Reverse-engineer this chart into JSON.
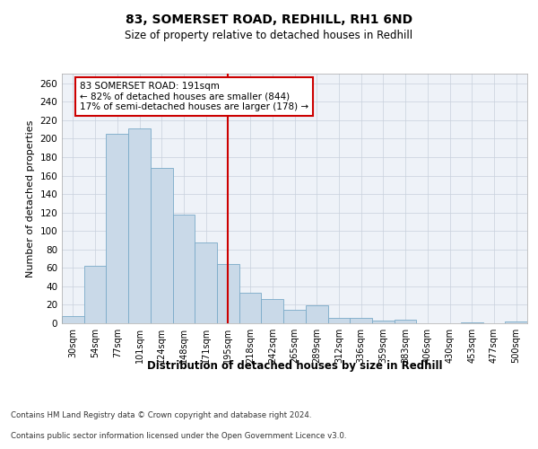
{
  "title1": "83, SOMERSET ROAD, REDHILL, RH1 6ND",
  "title2": "Size of property relative to detached houses in Redhill",
  "xlabel": "Distribution of detached houses by size in Redhill",
  "ylabel": "Number of detached properties",
  "bar_labels": [
    "30sqm",
    "54sqm",
    "77sqm",
    "101sqm",
    "124sqm",
    "148sqm",
    "171sqm",
    "195sqm",
    "218sqm",
    "242sqm",
    "265sqm",
    "289sqm",
    "312sqm",
    "336sqm",
    "359sqm",
    "383sqm",
    "406sqm",
    "430sqm",
    "453sqm",
    "477sqm",
    "500sqm"
  ],
  "bar_heights": [
    8,
    62,
    205,
    211,
    168,
    118,
    88,
    64,
    33,
    26,
    15,
    19,
    6,
    6,
    3,
    4,
    0,
    0,
    1,
    0,
    2
  ],
  "bar_color": "#c9d9e8",
  "bar_edge_color": "#7aaac8",
  "vline_x": 7,
  "vline_color": "#cc0000",
  "annotation_text": "83 SOMERSET ROAD: 191sqm\n← 82% of detached houses are smaller (844)\n17% of semi-detached houses are larger (178) →",
  "annotation_box_color": "#ffffff",
  "annotation_box_edge": "#cc0000",
  "ylim": [
    0,
    270
  ],
  "yticks": [
    0,
    20,
    40,
    60,
    80,
    100,
    120,
    140,
    160,
    180,
    200,
    220,
    240,
    260
  ],
  "grid_color": "#c8d0dc",
  "bg_color": "#eef2f8",
  "footer_line1": "Contains HM Land Registry data © Crown copyright and database right 2024.",
  "footer_line2": "Contains public sector information licensed under the Open Government Licence v3.0."
}
